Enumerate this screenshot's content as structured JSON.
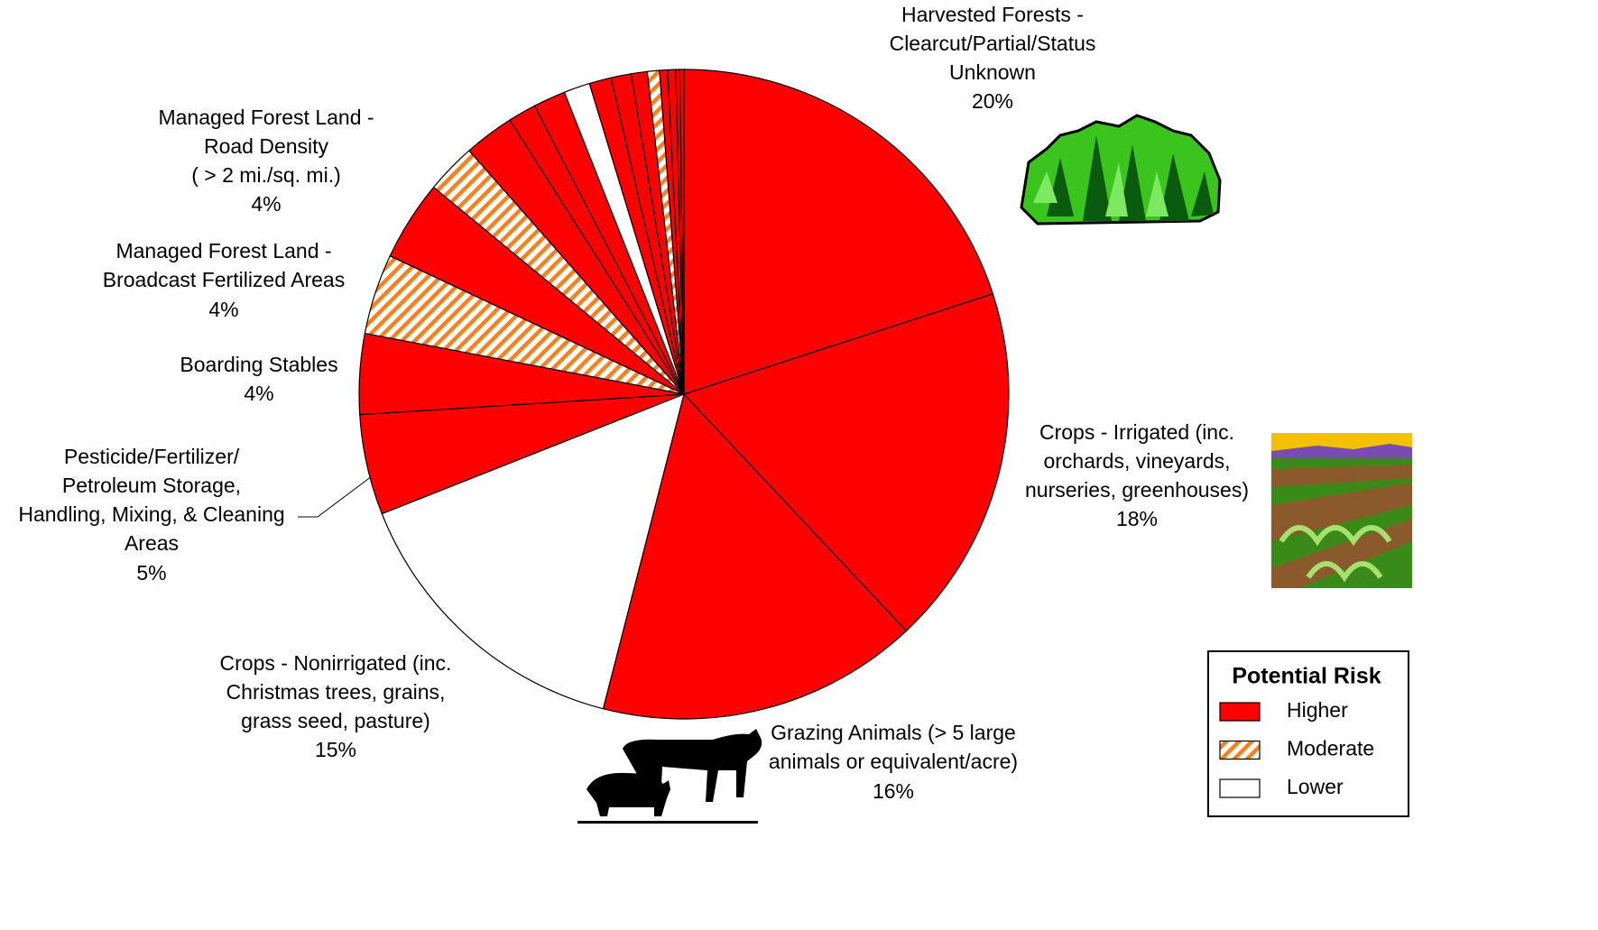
{
  "chart_data": {
    "type": "pie",
    "categories": [
      "Harvested Forests -\nClearcut/Partial/Status\nUnknown",
      "Crops - Irrigated (inc.\norchards, vineyards,\nnurseries, greenhouses)",
      "Grazing Animals (> 5 large\nanimals or equivalent/acre)",
      "Crops - Nonirrigated (inc.\nChristmas trees, grains,\ngrass seed, pasture)",
      "Pesticide/Fertilizer/\nPetroleum Storage,\nHandling, Mixing, & Cleaning\nAreas",
      "Boarding Stables",
      "Managed Forest Land -\nBroadcast Fertilized Areas",
      "Managed Forest Land -\nRoad Density\n( > 2 mi./sq. mi.)",
      null,
      null,
      null,
      null,
      null,
      null,
      null,
      null,
      null,
      null,
      null,
      null,
      null
    ],
    "values": [
      20,
      18,
      16,
      15,
      5,
      4,
      4,
      4,
      2.5,
      2.5,
      1.4,
      1.6,
      1.3,
      1.1,
      1.0,
      0.8,
      0.6,
      0.4,
      0.4,
      0.2,
      0.2
    ],
    "value_labels": [
      "20%",
      "18%",
      "16%",
      "15%",
      "5%",
      "4%",
      "4%",
      "4%",
      null,
      null,
      null,
      null,
      null,
      null,
      null,
      null,
      null,
      null,
      null,
      null,
      null
    ],
    "colors": [
      "#ff0000",
      "#ff0000",
      "#ff0000",
      "#ffffff",
      "#ff0000",
      "#ff0000",
      "hatch",
      "#ff0000",
      "hatch",
      "#ff0000",
      "#ff0000",
      "#ff0000",
      "#ffffff",
      "#ff0000",
      "#ff0000",
      "#ff0000",
      "hatch",
      "#ff0000",
      "#ff0000",
      "#ff0000",
      "#ff0000"
    ],
    "legend": {
      "title": "Potential Risk",
      "items": [
        {
          "name": "Higher",
          "color": "#ff0000"
        },
        {
          "name": "Moderate",
          "color": "hatch"
        },
        {
          "name": "Lower",
          "color": "#ffffff"
        }
      ]
    }
  }
}
